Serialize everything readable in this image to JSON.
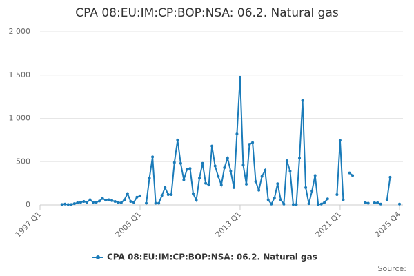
{
  "chart_data": {
    "type": "line",
    "title": "CPA 08:EU:IM:CP:BOP:NSA: 06.2. Natural gas",
    "source": "Source:",
    "categories": [
      "1997 Q1",
      null,
      null,
      null,
      null,
      null,
      null,
      null,
      null,
      null,
      null,
      null,
      null,
      null,
      null,
      null,
      null,
      null,
      null,
      null,
      null,
      null,
      null,
      null,
      null,
      null,
      null,
      null,
      null,
      null,
      null,
      null,
      "2005 Q1",
      null,
      null,
      null,
      null,
      null,
      null,
      null,
      null,
      null,
      null,
      null,
      null,
      null,
      null,
      null,
      null,
      null,
      null,
      null,
      null,
      null,
      null,
      null,
      null,
      null,
      null,
      null,
      null,
      null,
      null,
      null,
      "2013 Q1",
      null,
      null,
      null,
      null,
      null,
      null,
      null,
      null,
      null,
      null,
      null,
      null,
      null,
      null,
      null,
      null,
      null,
      null,
      null,
      null,
      null,
      null,
      null,
      null,
      null,
      null,
      null,
      null,
      null,
      null,
      null,
      "2021 Q1",
      null,
      null,
      null,
      null,
      null,
      null,
      null,
      null,
      null,
      null,
      null,
      null,
      null,
      null,
      null,
      null,
      null,
      null,
      "2025 Q4"
    ],
    "series": [
      {
        "name": "CPA 08:EU:IM:CP:BOP:NSA: 06.2. Natural gas",
        "color": "#1a7bb9",
        "values": [
          null,
          null,
          null,
          null,
          null,
          null,
          null,
          5,
          10,
          5,
          5,
          15,
          25,
          30,
          40,
          30,
          60,
          30,
          30,
          45,
          75,
          55,
          60,
          50,
          40,
          30,
          25,
          60,
          130,
          40,
          30,
          90,
          105,
          null,
          20,
          310,
          555,
          20,
          20,
          110,
          200,
          120,
          120,
          490,
          750,
          480,
          290,
          410,
          420,
          130,
          55,
          310,
          480,
          250,
          230,
          680,
          450,
          330,
          230,
          430,
          540,
          390,
          200,
          820,
          1475,
          460,
          240,
          700,
          720,
          270,
          170,
          330,
          400,
          60,
          10,
          80,
          245,
          60,
          10,
          510,
          390,
          5,
          5,
          540,
          1205,
          200,
          15,
          160,
          340,
          5,
          10,
          30,
          70,
          null,
          null,
          120,
          745,
          60,
          null,
          370,
          340,
          null,
          null,
          null,
          30,
          20,
          null,
          25,
          25,
          10,
          null,
          60,
          320,
          null,
          null,
          10
        ]
      }
    ],
    "ylim": [
      0,
      2000
    ],
    "yticks": [
      0,
      500,
      {
        "value": 1000,
        "label": "1 000"
      },
      {
        "value": 1500,
        "label": "1 500"
      },
      {
        "value": 2000,
        "label": "2 000"
      }
    ],
    "grid": true,
    "legend": "bottom"
  }
}
